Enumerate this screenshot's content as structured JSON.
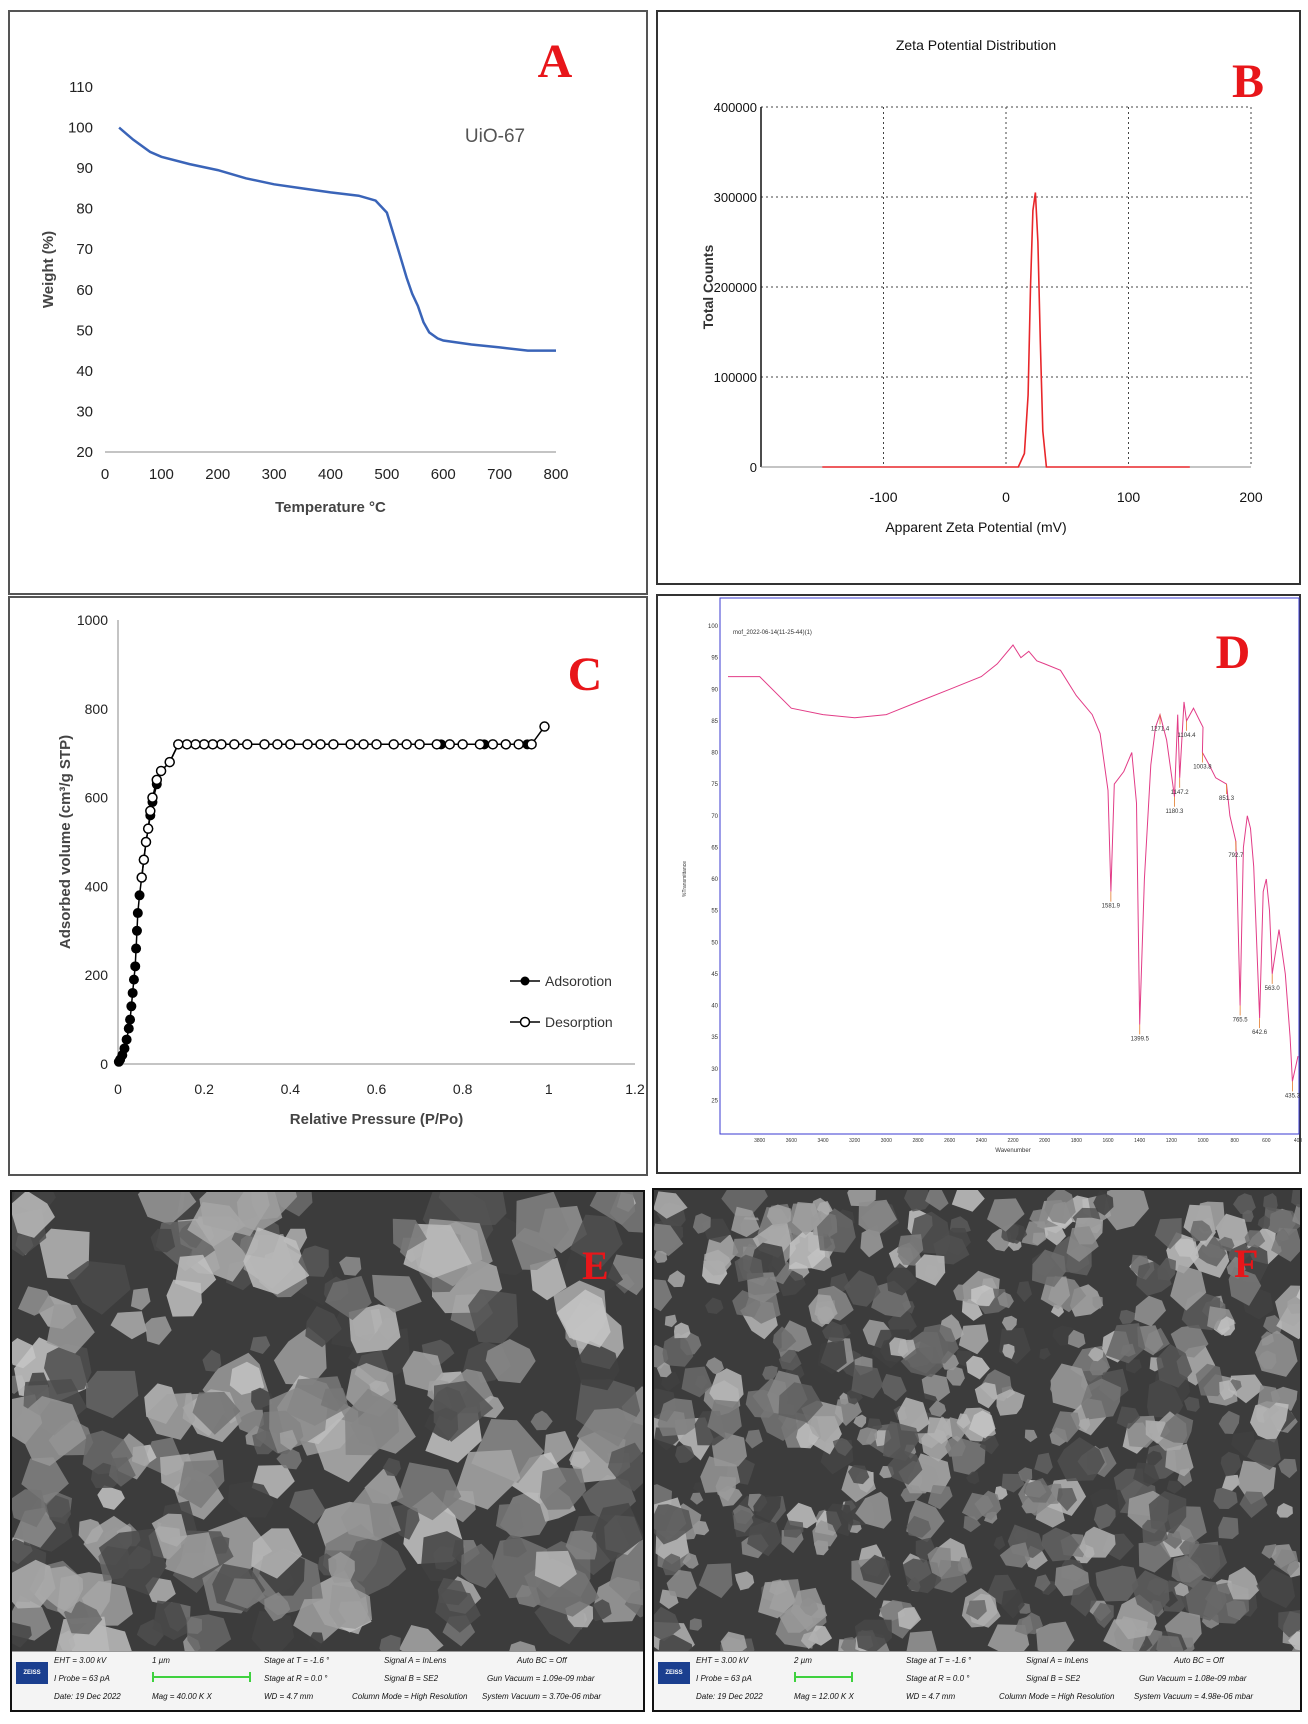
{
  "colors": {
    "tga_line": "#3a64b8",
    "zeta_line": "#e8262a",
    "ftir_line": "#e23c87",
    "ftir_frame": "#3a3ad0",
    "panel_letter": "#e8161a",
    "scale_bar": "#3fd13f"
  },
  "chart_data": [
    {
      "panel": "A",
      "type": "line",
      "title": "",
      "legend_label": "UiO-67",
      "xlabel": "Temperature °C",
      "ylabel": "Weight (%)",
      "xlim": [
        0,
        800
      ],
      "ylim": [
        20,
        110
      ],
      "x_ticks": [
        0,
        100,
        200,
        300,
        400,
        500,
        600,
        700,
        800
      ],
      "y_ticks": [
        20,
        30,
        40,
        50,
        60,
        70,
        80,
        90,
        100,
        110
      ],
      "grid": false,
      "x": [
        25,
        50,
        80,
        100,
        150,
        200,
        250,
        300,
        350,
        400,
        450,
        480,
        500,
        520,
        535,
        545,
        555,
        565,
        575,
        590,
        600,
        650,
        700,
        750,
        800
      ],
      "y": [
        100,
        97,
        94,
        92.8,
        91,
        89.5,
        87.5,
        86,
        85,
        84,
        83.2,
        82,
        79,
        70,
        63,
        59,
        56,
        52,
        49.5,
        48,
        47.5,
        46.5,
        45.8,
        45,
        45
      ]
    },
    {
      "panel": "B",
      "type": "line",
      "title": "Zeta Potential Distribution",
      "xlabel": "Apparent Zeta Potential (mV)",
      "ylabel": "Total Counts",
      "xlim": [
        -200,
        200
      ],
      "ylim": [
        0,
        400000
      ],
      "x_ticks": [
        -100,
        0,
        100,
        200
      ],
      "y_ticks": [
        0,
        100000,
        200000,
        300000,
        400000
      ],
      "grid": true,
      "x": [
        -150,
        0,
        10,
        15,
        18,
        20,
        22,
        24,
        26,
        28,
        30,
        33,
        40,
        150
      ],
      "y": [
        0,
        0,
        0,
        15000,
        80000,
        200000,
        285000,
        305000,
        250000,
        140000,
        40000,
        0,
        0,
        0
      ]
    },
    {
      "panel": "C",
      "type": "scatter",
      "title": "",
      "xlabel": "Relative Pressure (P/Po)",
      "ylabel": "Adsorbed volume (cm³/g STP)",
      "xlim": [
        0,
        1.2
      ],
      "ylim": [
        0,
        1000
      ],
      "x_ticks": [
        0,
        0.2,
        0.4,
        0.6,
        0.8,
        1,
        1.2
      ],
      "y_ticks": [
        0,
        200,
        400,
        600,
        800,
        1000
      ],
      "grid": false,
      "legend_placement": "bottom-right",
      "series": [
        {
          "name": "Adsorotion",
          "marker": "filled-circle",
          "x": [
            0.002,
            0.005,
            0.01,
            0.015,
            0.02,
            0.025,
            0.028,
            0.031,
            0.034,
            0.037,
            0.04,
            0.042,
            0.044,
            0.046,
            0.05,
            0.055,
            0.06,
            0.065,
            0.07,
            0.075,
            0.08,
            0.09,
            0.1,
            0.12,
            0.14,
            0.2,
            0.3,
            0.4,
            0.5,
            0.6,
            0.7,
            0.75,
            0.8,
            0.85,
            0.9,
            0.95
          ],
          "y": [
            5,
            10,
            20,
            35,
            55,
            80,
            100,
            130,
            160,
            190,
            220,
            260,
            300,
            340,
            380,
            420,
            460,
            500,
            530,
            560,
            590,
            630,
            660,
            680,
            720,
            720,
            720,
            720,
            720,
            720,
            720,
            720,
            720,
            720,
            720,
            720
          ]
        },
        {
          "name": "Desorption",
          "marker": "open-circle",
          "x": [
            0.99,
            0.96,
            0.93,
            0.9,
            0.87,
            0.84,
            0.8,
            0.77,
            0.74,
            0.7,
            0.67,
            0.64,
            0.6,
            0.57,
            0.54,
            0.5,
            0.47,
            0.44,
            0.4,
            0.37,
            0.34,
            0.3,
            0.27,
            0.24,
            0.22,
            0.2,
            0.18,
            0.16,
            0.14,
            0.12,
            0.1,
            0.09,
            0.08,
            0.075,
            0.07,
            0.065,
            0.06,
            0.055
          ],
          "y": [
            760,
            720,
            720,
            720,
            720,
            720,
            720,
            720,
            720,
            720,
            720,
            720,
            720,
            720,
            720,
            720,
            720,
            720,
            720,
            720,
            720,
            720,
            720,
            720,
            720,
            720,
            720,
            720,
            720,
            680,
            660,
            640,
            600,
            570,
            530,
            500,
            460,
            420
          ]
        }
      ]
    },
    {
      "panel": "D",
      "type": "line",
      "title": "mof_2022-06-14(11-25-44)(1)",
      "xlabel": "Wavenumber",
      "ylabel": "%Transmittance",
      "xlim": [
        4000,
        400
      ],
      "ylim": [
        20,
        100
      ],
      "x_ticks": [
        3800,
        3600,
        3400,
        3200,
        3000,
        2800,
        2600,
        2400,
        2200,
        2000,
        1800,
        1600,
        1400,
        1200,
        1000,
        800,
        600,
        400
      ],
      "y_ticks": [
        25,
        30,
        35,
        40,
        45,
        50,
        55,
        60,
        65,
        70,
        75,
        80,
        85,
        90,
        95,
        100
      ],
      "grid": false,
      "x": [
        4000,
        3800,
        3600,
        3400,
        3200,
        3000,
        2800,
        2600,
        2400,
        2300,
        2200,
        2150,
        2100,
        2050,
        2000,
        1900,
        1800,
        1700,
        1650,
        1600,
        1581.9,
        1560,
        1500,
        1450,
        1420,
        1399.5,
        1370,
        1330,
        1300,
        1271.4,
        1230,
        1180.3,
        1160,
        1147.2,
        1120,
        1104.4,
        1060,
        1020,
        1000,
        1003.8,
        960,
        920,
        851.3,
        830,
        792.7,
        785,
        765.5,
        745,
        720,
        700,
        680,
        642.6,
        620,
        600,
        580,
        563.0,
        520,
        480,
        450,
        435.3,
        400
      ],
      "y": [
        92,
        92,
        87,
        86,
        85.5,
        86,
        88,
        90,
        92,
        94,
        97,
        95,
        96,
        94.5,
        94,
        93,
        89,
        86,
        83,
        74,
        58,
        75,
        77,
        80,
        72,
        37,
        60,
        78,
        84,
        86,
        82,
        73,
        86,
        76,
        88,
        85,
        87,
        85,
        84,
        80,
        78,
        76,
        75,
        70,
        66,
        60,
        40,
        65,
        70,
        68,
        62,
        38,
        58,
        60,
        55,
        45,
        52,
        45,
        35,
        28,
        32
      ],
      "peak_labels": [
        "1581.9",
        "1399.5",
        "1271.4",
        "1180.3",
        "1147.2",
        "1104.4",
        "1003.8",
        "851.3",
        "792.7",
        "765.5",
        "642.6",
        "563.0",
        "435.3"
      ]
    }
  ],
  "panels": {
    "a": {
      "letter": "A"
    },
    "b": {
      "letter": "B"
    },
    "c": {
      "letter": "C"
    },
    "d": {
      "letter": "D"
    },
    "e": {
      "letter": "E",
      "logo": "ZEISS",
      "eht": "EHT = 3.00 kV",
      "i_probe": "I Probe = 63 pA",
      "date": "Date: 19 Dec 2022",
      "scale": "1 µm",
      "mag": "Mag = 40.00 K X",
      "stage_t": "Stage at T = -1.6 °",
      "stage_r": "Stage at R = 0.0 °",
      "wd": "WD = 4.7 mm",
      "signal_a": "Signal A = InLens",
      "signal_b": "Signal B = SE2",
      "column_mode": "Column Mode = High Resolution",
      "auto_bc": "Auto BC = Off",
      "gun_vacuum": "Gun Vacuum = 1.09e-09 mbar",
      "system_vacuum": "System Vacuum = 3.70e-06 mbar"
    },
    "f": {
      "letter": "F",
      "logo": "ZEISS",
      "eht": "EHT = 3.00 kV",
      "i_probe": "I Probe = 63 pA",
      "date": "Date: 19 Dec 2022",
      "scale": "2 µm",
      "mag": "Mag = 12.00 K X",
      "stage_t": "Stage at T = -1.6 °",
      "stage_r": "Stage at R = 0.0 °",
      "wd": "WD = 4.7 mm",
      "signal_a": "Signal A = InLens",
      "signal_b": "Signal B = SE2",
      "column_mode": "Column Mode = High Resolution",
      "auto_bc": "Auto BC = Off",
      "gun_vacuum": "Gun Vacuum = 1.08e-09 mbar",
      "system_vacuum": "System Vacuum = 4.98e-06 mbar"
    }
  }
}
